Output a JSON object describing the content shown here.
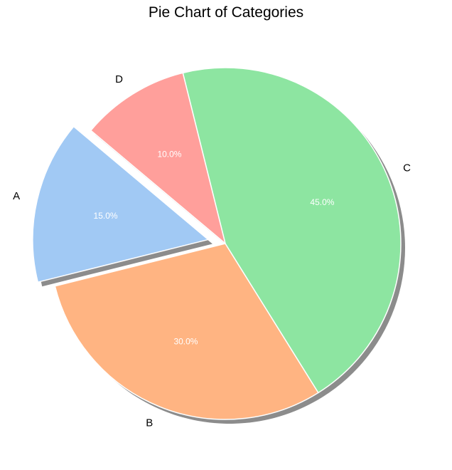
{
  "chart_data": {
    "type": "pie",
    "title": "Pie Chart of Categories",
    "categories": [
      "A",
      "B",
      "C",
      "D"
    ],
    "values": [
      15.0,
      30.0,
      45.0,
      10.0
    ],
    "percent_labels": [
      "15.0%",
      "30.0%",
      "45.0%",
      "10.0%"
    ],
    "colors": [
      "#a1c9f4",
      "#ffb482",
      "#8de5a1",
      "#ff9f9b"
    ],
    "exploded": [
      "A"
    ],
    "shadow": true,
    "start_angle_deg": 140,
    "direction": "counterclockwise"
  }
}
